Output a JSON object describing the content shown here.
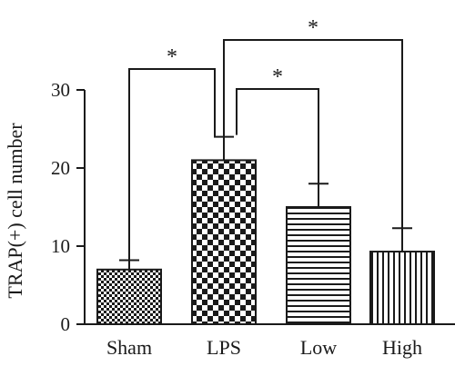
{
  "chart_data": {
    "type": "bar",
    "title": "",
    "xlabel": "",
    "ylabel": "TRAP(+) cell number",
    "ylim": [
      0,
      30
    ],
    "yticks": [
      0,
      10,
      20,
      30
    ],
    "grid": false,
    "categories": [
      "Sham",
      "LPS",
      "Low",
      "High"
    ],
    "values": [
      7,
      21,
      15,
      9.3
    ],
    "errors": [
      1.2,
      3,
      3,
      3
    ],
    "patterns": [
      "fine-checker",
      "coarse-checker",
      "horizontal-lines",
      "vertical-lines"
    ],
    "significance": [
      {
        "from": "Sham",
        "to": "LPS",
        "label": "*"
      },
      {
        "from": "LPS",
        "to": "Low",
        "label": "*"
      },
      {
        "from": "LPS",
        "to": "High",
        "label": "*"
      }
    ]
  }
}
